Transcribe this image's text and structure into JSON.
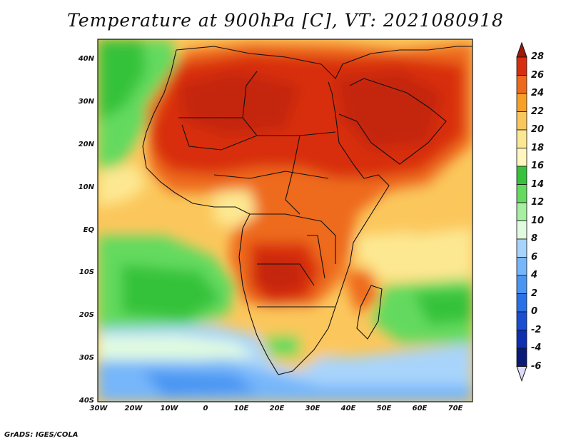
{
  "title": "Temperature at 900hPa [C], VT: 2021080918",
  "credit": "GrADS: IGES/COLA",
  "lat_labels": [
    "40N",
    "30N",
    "20N",
    "10N",
    "EQ",
    "10S",
    "20S",
    "30S",
    "40S"
  ],
  "lon_labels": [
    "30W",
    "20W",
    "10W",
    "0",
    "10E",
    "20E",
    "30E",
    "40E",
    "50E",
    "60E",
    "70E"
  ],
  "colorbar": {
    "labels": [
      "28",
      "26",
      "24",
      "22",
      "20",
      "18",
      "16",
      "14",
      "12",
      "10",
      "8",
      "6",
      "4",
      "2",
      "0",
      "-2",
      "-4",
      "-6"
    ],
    "colors": [
      "#a01808",
      "#d82e10",
      "#ee6a1c",
      "#f7a028",
      "#fbc75c",
      "#fde892",
      "#fff6c0",
      "#36c23a",
      "#64da5e",
      "#a6eea0",
      "#e0fbe0",
      "#a8d4fb",
      "#76b6fa",
      "#4a95f2",
      "#2a70e6",
      "#1a4ed2",
      "#0e30b0",
      "#0a1a78",
      "#dcdcf8"
    ]
  },
  "map_colors": {
    "hot": "#d82e10",
    "warm": "#ee6a1c",
    "mild": "#fbc75c",
    "pale": "#fde892",
    "green": "#64da5e",
    "cool": "#a8d4fb",
    "cold": "#76b6fa"
  }
}
